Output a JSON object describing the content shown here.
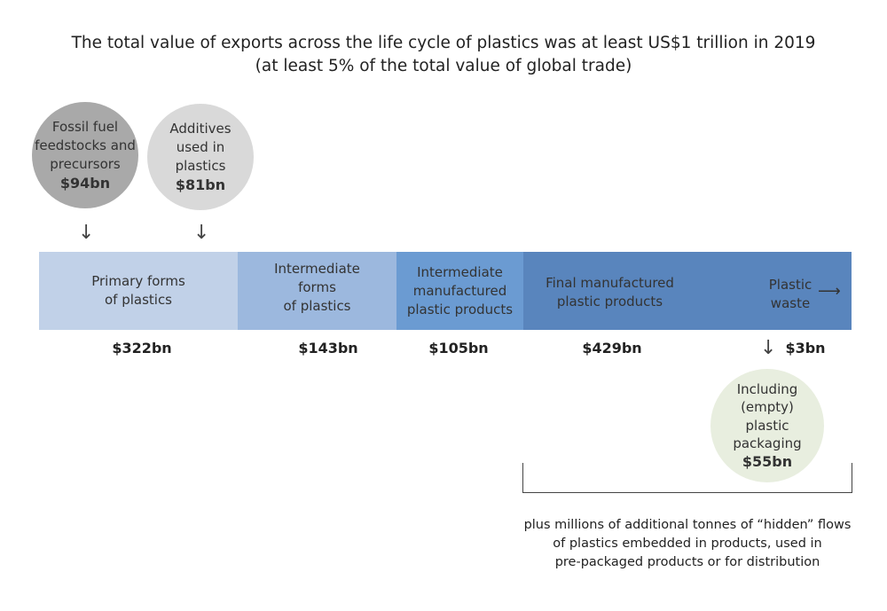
{
  "title": {
    "line1": "The total value of exports across  the life cycle of plastics was at least US$1 trillion in 2019",
    "line2": "(at least 5% of the total value of global trade)"
  },
  "inputs": [
    {
      "label_lines": [
        "Fossil fuel",
        "feedstocks and",
        "precursors"
      ],
      "value": "$94bn",
      "color": "#a9a9a9"
    },
    {
      "label_lines": [
        "Additives",
        "used in",
        "plastics"
      ],
      "value": "$81bn",
      "color": "#d9d9d9"
    }
  ],
  "stages": [
    {
      "label_lines": [
        "Primary forms",
        "of plastics"
      ],
      "value": "$322bn",
      "color": "#c1d1e8"
    },
    {
      "label_lines": [
        "Intermediate",
        "forms",
        "of plastics"
      ],
      "value": "$143bn",
      "color": "#9cb8de"
    },
    {
      "label_lines": [
        "Intermediate",
        "manufactured",
        "plastic products"
      ],
      "value": "$105bn",
      "color": "#6b9bd2"
    },
    {
      "label_lines": [
        "Final manufactured",
        "plastic products"
      ],
      "value": "$429bn",
      "color": "#5985bd"
    },
    {
      "label_lines": [
        "Plastic",
        "waste"
      ],
      "value": "$3bn",
      "color": "#5985bd"
    }
  ],
  "packaging": {
    "label_lines": [
      "Including",
      "(empty)",
      "plastic",
      "packaging"
    ],
    "value": "$55bn",
    "color": "#e8eedf"
  },
  "footnote": {
    "lines": [
      "plus millions of additional tonnes of “hidden” flows",
      "of plastics embedded in products, used in",
      "pre-packaged products or for distribution"
    ]
  }
}
